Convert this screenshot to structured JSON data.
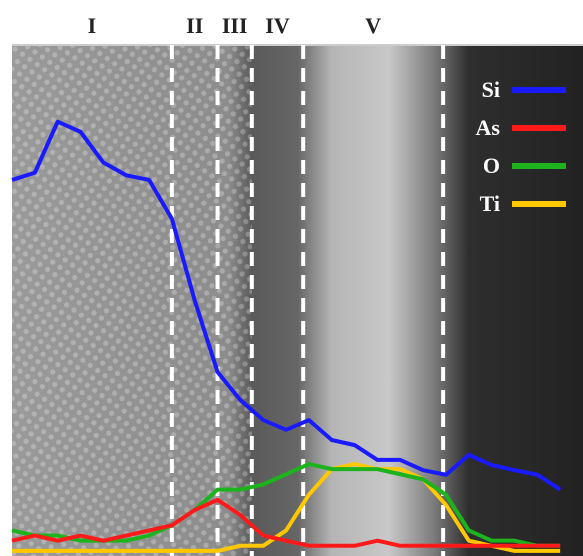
{
  "chart_data": {
    "type": "line",
    "regions": [
      "I",
      "II",
      "III",
      "IV",
      "V"
    ],
    "boundaries": [
      28,
      36,
      42,
      51,
      75.5
    ],
    "xlim": [
      0,
      100
    ],
    "ylim": [
      0,
      100
    ],
    "x": [
      0,
      4,
      8,
      12,
      16,
      20,
      24,
      28,
      32,
      36,
      40,
      44,
      48,
      52,
      56,
      60,
      64,
      68,
      72,
      76,
      80,
      84,
      88,
      92,
      96
    ],
    "series": [
      {
        "name": "Si",
        "color": "#1a1aff",
        "values": [
          73.6,
          75,
          85,
          83,
          77,
          74.5,
          73.6,
          66,
          50,
          36,
          30.5,
          26.6,
          24.7,
          26.6,
          22.7,
          21.7,
          18.8,
          18.8,
          16.8,
          15.9,
          19.8,
          17.8,
          16.8,
          15.9,
          13
        ]
      },
      {
        "name": "As",
        "color": "#ff1a1a",
        "values": [
          3,
          4,
          3,
          4,
          3,
          4,
          5,
          6,
          9,
          11,
          8,
          4,
          3,
          2,
          2,
          2,
          3,
          2,
          2,
          2,
          2,
          2,
          2,
          2,
          2
        ]
      },
      {
        "name": "O",
        "color": "#1db31d",
        "values": [
          5,
          4,
          4,
          3,
          3,
          3,
          4,
          6,
          9,
          13,
          13,
          14,
          16,
          18,
          17,
          17,
          17,
          16,
          15,
          12,
          5,
          3,
          3,
          2,
          2
        ]
      },
      {
        "name": "Ti",
        "color": "#ffc800",
        "values": [
          1,
          1,
          1,
          1,
          1,
          1,
          1,
          1,
          1,
          1,
          2,
          2,
          5,
          12,
          17,
          18,
          17,
          17,
          15,
          10,
          3,
          2,
          1,
          1,
          1
        ]
      }
    ]
  }
}
